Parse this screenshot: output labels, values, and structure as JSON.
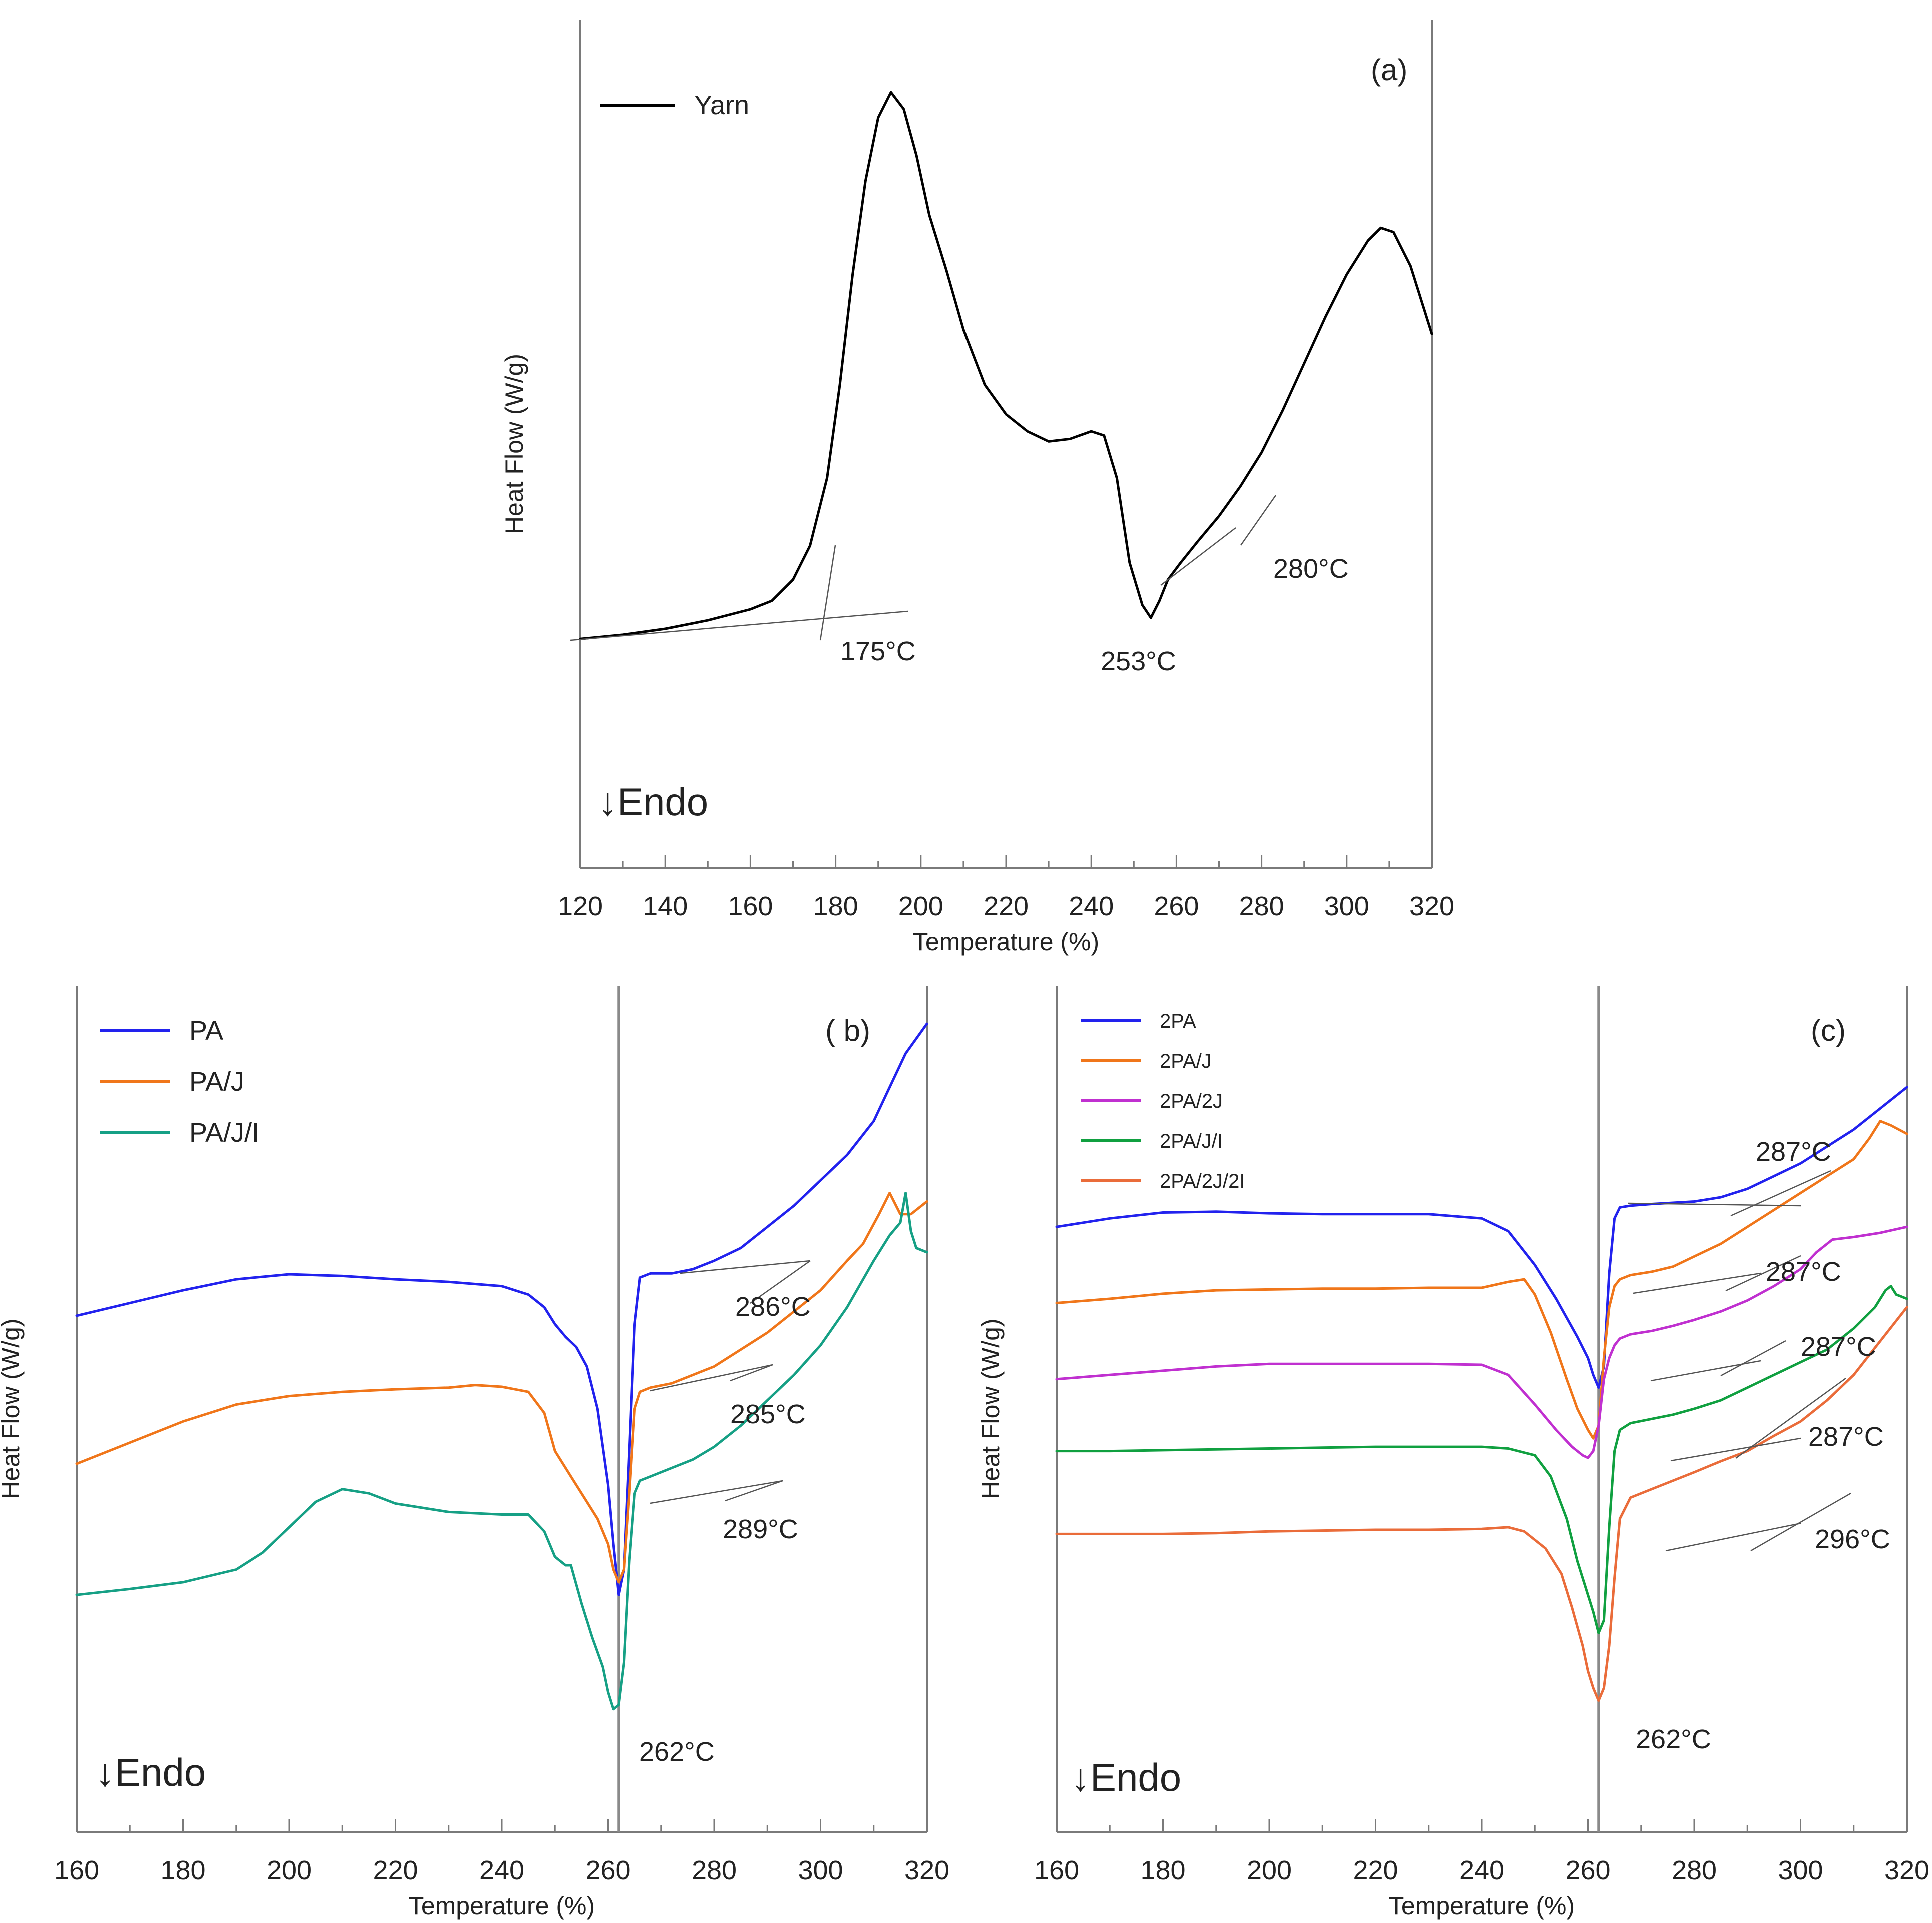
{
  "figure": {
    "endo_label": "↓Endo"
  },
  "chart_data": [
    {
      "id": "a",
      "type": "line",
      "panel_label": "(a)",
      "xlabel": "Temperature (%)",
      "ylabel": "Heat Flow (W/g)",
      "xlim": [
        120,
        320
      ],
      "ylim": [
        0,
        100
      ],
      "xticks": [
        120,
        140,
        160,
        180,
        200,
        220,
        240,
        260,
        280,
        300,
        320
      ],
      "legend_position": "top-left",
      "series": [
        {
          "name": "Yarn",
          "color": "#000000",
          "x": [
            120,
            130,
            140,
            150,
            160,
            165,
            170,
            174,
            178,
            181,
            184,
            187,
            190,
            193,
            196,
            199,
            202,
            206,
            210,
            215,
            220,
            225,
            230,
            235,
            240,
            243,
            246,
            249,
            252,
            254,
            256,
            258,
            261,
            265,
            270,
            275,
            280,
            285,
            290,
            295,
            300,
            305,
            308,
            311,
            315,
            320
          ],
          "y": [
            27.0,
            27.5,
            28.2,
            29.2,
            30.5,
            31.5,
            34.0,
            38.0,
            46.0,
            57.0,
            70.0,
            81.0,
            88.5,
            91.5,
            89.5,
            84.0,
            77.0,
            70.5,
            63.5,
            57.0,
            53.5,
            51.5,
            50.3,
            50.6,
            51.5,
            51.0,
            46.0,
            36.0,
            31.0,
            29.5,
            31.5,
            34.0,
            36.0,
            38.5,
            41.5,
            45.0,
            49.0,
            54.0,
            59.5,
            65.0,
            70.0,
            74.0,
            75.5,
            75.0,
            71.0,
            63.0
          ]
        }
      ],
      "annotations": [
        {
          "text": "175°C",
          "x": 175,
          "y": 27
        },
        {
          "text": "253°C",
          "x": 253,
          "y": 24
        },
        {
          "text": "280°C",
          "x": 280,
          "y": 38
        }
      ]
    },
    {
      "id": "b",
      "type": "line",
      "panel_label": "( b)",
      "xlabel": "Temperature (%)",
      "ylabel": "Heat Flow (W/g)",
      "xlim": [
        160,
        320
      ],
      "ylim": [
        0,
        100
      ],
      "xticks": [
        160,
        180,
        200,
        220,
        240,
        260,
        280,
        300,
        320
      ],
      "reference_line_x": 262,
      "legend_position": "top-left",
      "series": [
        {
          "name": "PA",
          "color": "#2222ee",
          "x": [
            160,
            170,
            180,
            190,
            200,
            210,
            220,
            230,
            240,
            245,
            248,
            250,
            252,
            254,
            256,
            258,
            260,
            261,
            262,
            263,
            264,
            265,
            266,
            268,
            272,
            276,
            280,
            285,
            290,
            295,
            300,
            305,
            310,
            313,
            316,
            320
          ],
          "y": [
            61.0,
            62.5,
            64.0,
            65.3,
            65.9,
            65.7,
            65.3,
            65.0,
            64.5,
            63.5,
            62.0,
            60.0,
            58.5,
            57.3,
            55.0,
            50.0,
            41.0,
            34.0,
            28.0,
            31.0,
            45.0,
            60.0,
            65.5,
            66.0,
            66.0,
            66.5,
            67.5,
            69.0,
            71.5,
            74.0,
            77.0,
            80.0,
            84.0,
            88.0,
            92.0,
            95.5
          ]
        },
        {
          "name": "PA/J",
          "color": "#f0761a",
          "x": [
            160,
            170,
            180,
            190,
            200,
            210,
            220,
            230,
            235,
            240,
            245,
            248,
            250,
            253,
            256,
            258,
            260,
            261,
            262,
            263,
            264,
            265,
            266,
            268,
            272,
            276,
            280,
            285,
            290,
            295,
            300,
            305,
            308,
            311,
            313,
            315,
            317,
            320
          ],
          "y": [
            43.5,
            46.0,
            48.5,
            50.5,
            51.5,
            52.0,
            52.3,
            52.5,
            52.8,
            52.6,
            52.0,
            49.5,
            45.0,
            42.0,
            39.0,
            37.0,
            34.0,
            31.0,
            29.5,
            31.0,
            40.0,
            50.0,
            52.0,
            52.5,
            53.0,
            54.0,
            55.0,
            57.0,
            59.0,
            61.5,
            64.0,
            67.5,
            69.5,
            73.0,
            75.5,
            73.0,
            73.0,
            74.5
          ]
        },
        {
          "name": "PA/J/I",
          "color": "#16a085",
          "x": [
            160,
            170,
            180,
            190,
            195,
            200,
            205,
            210,
            215,
            220,
            230,
            240,
            245,
            248,
            250,
            252,
            253,
            255,
            257,
            259,
            260,
            261,
            262,
            263,
            264,
            265,
            266,
            268,
            272,
            276,
            280,
            285,
            290,
            295,
            300,
            305,
            310,
            313,
            315,
            316,
            317,
            318,
            320
          ],
          "y": [
            28.0,
            28.7,
            29.5,
            31.0,
            33.0,
            36.0,
            39.0,
            40.5,
            40.0,
            38.8,
            37.8,
            37.5,
            37.5,
            35.5,
            32.5,
            31.5,
            31.5,
            27.0,
            23.0,
            19.5,
            16.5,
            14.5,
            15.0,
            20.0,
            32.0,
            40.0,
            41.5,
            42.0,
            43.0,
            44.0,
            45.5,
            48.0,
            51.0,
            54.0,
            57.5,
            62.0,
            67.5,
            70.5,
            72.0,
            75.5,
            71.0,
            69.0,
            68.5
          ]
        }
      ],
      "annotations": [
        {
          "text": "286°C",
          "x": 286,
          "y": 60
        },
        {
          "text": "285°C",
          "x": 285,
          "y": 49
        },
        {
          "text": "289°C",
          "x": 289,
          "y": 36
        },
        {
          "text": "262°C",
          "x": 262,
          "y": 9
        }
      ]
    },
    {
      "id": "c",
      "type": "line",
      "panel_label": "(c)",
      "xlabel": "Temperature (%)",
      "ylabel": "Heat Flow (W/g)",
      "xlim": [
        160,
        320
      ],
      "ylim": [
        0,
        100
      ],
      "xticks": [
        160,
        180,
        200,
        220,
        240,
        260,
        280,
        300,
        320
      ],
      "reference_line_x": 262,
      "legend_position": "top-left",
      "series": [
        {
          "name": "2PA",
          "color": "#2222ee",
          "x": [
            160,
            170,
            180,
            190,
            200,
            210,
            220,
            230,
            240,
            245,
            250,
            254,
            258,
            260,
            261,
            262,
            263,
            264,
            265,
            266,
            268,
            272,
            280,
            285,
            290,
            295,
            300,
            305,
            310,
            315,
            320
          ],
          "y": [
            71.5,
            72.5,
            73.2,
            73.3,
            73.1,
            73.0,
            73.0,
            73.0,
            72.5,
            71.0,
            67.0,
            63.0,
            58.5,
            56.0,
            54.0,
            52.5,
            55.0,
            66.0,
            72.5,
            73.8,
            74.0,
            74.2,
            74.5,
            75.0,
            76.0,
            77.5,
            79.0,
            81.0,
            83.0,
            85.5,
            88.0
          ]
        },
        {
          "name": "2PA/J",
          "color": "#f0761a",
          "x": [
            160,
            170,
            180,
            190,
            200,
            210,
            220,
            230,
            240,
            245,
            248,
            250,
            253,
            256,
            258,
            260,
            261,
            262,
            263,
            264,
            265,
            266,
            268,
            272,
            276,
            280,
            285,
            290,
            295,
            300,
            305,
            310,
            313,
            315,
            317,
            320
          ],
          "y": [
            62.5,
            63.0,
            63.6,
            64.0,
            64.1,
            64.2,
            64.2,
            64.3,
            64.3,
            65.0,
            65.3,
            63.5,
            59.0,
            53.5,
            50.0,
            47.5,
            46.5,
            48.0,
            56.0,
            62.0,
            64.5,
            65.3,
            65.8,
            66.2,
            66.8,
            68.0,
            69.5,
            71.5,
            73.5,
            75.5,
            77.5,
            79.5,
            82.0,
            84.0,
            83.5,
            82.5
          ]
        },
        {
          "name": "2PA/2J",
          "color": "#c030d0",
          "x": [
            160,
            170,
            180,
            190,
            200,
            210,
            220,
            230,
            240,
            245,
            250,
            254,
            257,
            259,
            260,
            261,
            262,
            263,
            264,
            265,
            266,
            268,
            272,
            276,
            280,
            285,
            290,
            295,
            300,
            303,
            306,
            310,
            315,
            320
          ],
          "y": [
            53.5,
            54.0,
            54.5,
            55.0,
            55.3,
            55.3,
            55.3,
            55.3,
            55.2,
            54.0,
            50.5,
            47.5,
            45.5,
            44.5,
            44.2,
            45.0,
            48.0,
            53.5,
            56.0,
            57.5,
            58.3,
            58.8,
            59.2,
            59.8,
            60.5,
            61.5,
            62.8,
            64.5,
            66.5,
            68.5,
            70.0,
            70.3,
            70.8,
            71.5
          ]
        },
        {
          "name": "2PA/J/I",
          "color": "#10a040",
          "x": [
            160,
            170,
            180,
            190,
            200,
            210,
            220,
            230,
            240,
            245,
            250,
            253,
            256,
            258,
            260,
            261,
            262,
            263,
            264,
            265,
            266,
            268,
            272,
            276,
            280,
            285,
            290,
            295,
            300,
            305,
            310,
            314,
            316,
            317,
            318,
            320
          ],
          "y": [
            45.0,
            45.0,
            45.1,
            45.2,
            45.3,
            45.4,
            45.5,
            45.5,
            45.5,
            45.3,
            44.5,
            42.0,
            37.0,
            32.0,
            28.0,
            26.0,
            23.5,
            25.0,
            36.0,
            45.0,
            47.5,
            48.3,
            48.8,
            49.3,
            50.0,
            51.0,
            52.5,
            54.0,
            55.5,
            57.0,
            59.5,
            62.0,
            64.0,
            64.5,
            63.5,
            63.0
          ]
        },
        {
          "name": "2PA/2J/2I",
          "color": "#ea6c3a",
          "x": [
            160,
            170,
            180,
            190,
            200,
            210,
            220,
            230,
            240,
            245,
            248,
            252,
            255,
            257,
            259,
            260,
            261,
            262,
            263,
            264,
            265,
            266,
            268,
            272,
            276,
            280,
            285,
            290,
            295,
            300,
            305,
            310,
            315,
            320
          ],
          "y": [
            35.2,
            35.2,
            35.2,
            35.3,
            35.5,
            35.6,
            35.7,
            35.7,
            35.8,
            36.0,
            35.5,
            33.5,
            30.5,
            26.5,
            22.0,
            19.0,
            17.0,
            15.5,
            17.0,
            22.0,
            30.0,
            37.0,
            39.5,
            40.5,
            41.5,
            42.5,
            43.8,
            45.0,
            46.8,
            48.5,
            51.0,
            54.0,
            58.0,
            62.0
          ]
        }
      ],
      "annotations": [
        {
          "text": "287°C",
          "x": 287,
          "y": 79
        },
        {
          "text": "287°C",
          "x": 287,
          "y": 67
        },
        {
          "text": "287°C",
          "x": 287,
          "y": 58
        },
        {
          "text": "287°C",
          "x": 287,
          "y": 49
        },
        {
          "text": "296°C",
          "x": 296,
          "y": 37
        },
        {
          "text": "262°C",
          "x": 262,
          "y": 11
        }
      ]
    }
  ]
}
